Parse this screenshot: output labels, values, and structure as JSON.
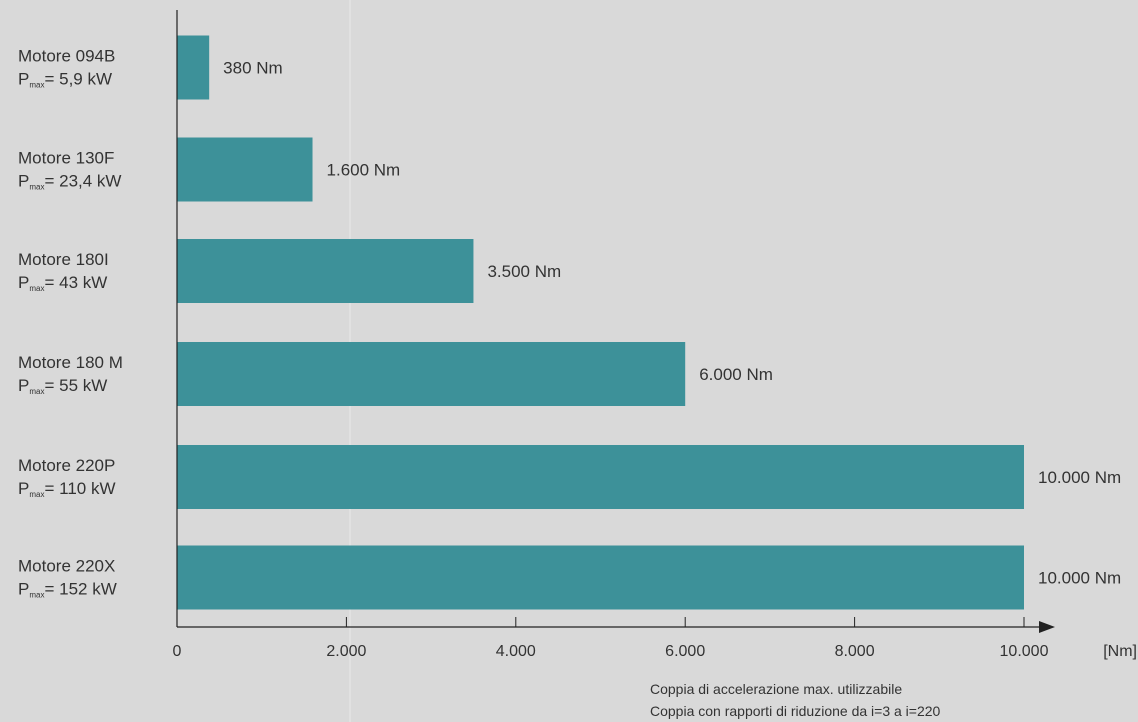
{
  "chart_data": {
    "type": "bar",
    "orientation": "horizontal",
    "categories": [
      {
        "name": "Motore 094B",
        "power_symbol": "P",
        "power_sub": "max",
        "power_value": "= 5,9 kW"
      },
      {
        "name": "Motore 130F",
        "power_symbol": "P",
        "power_sub": "max",
        "power_value": "= 23,4 kW"
      },
      {
        "name": "Motore 180I",
        "power_symbol": "P",
        "power_sub": "max",
        "power_value": "= 43 kW"
      },
      {
        "name": "Motore 180 M",
        "power_symbol": "P",
        "power_sub": "max",
        "power_value": "= 55 kW"
      },
      {
        "name": "Motore 220P",
        "power_symbol": "P",
        "power_sub": "max",
        "power_value": "= 110 kW"
      },
      {
        "name": "Motore 220X",
        "power_symbol": "P",
        "power_sub": "max",
        "power_value": "= 152 kW"
      }
    ],
    "values": [
      380,
      1600,
      3500,
      6000,
      10000,
      10000
    ],
    "data_labels": [
      "380 Nm",
      "1.600 Nm",
      "3.500 Nm",
      "6.000 Nm",
      "10.000 Nm",
      "10.000 Nm"
    ],
    "xlim": [
      0,
      10000
    ],
    "x_ticks": [
      0,
      2000,
      4000,
      6000,
      8000,
      10000
    ],
    "x_tick_labels": [
      "0",
      "2.000",
      "4.000",
      "6.000",
      "8.000",
      "10.000"
    ],
    "x_unit": "[Nm]",
    "grid": false,
    "footnote_lines": [
      "Coppia di accelerazione max. utilizzabile",
      "Coppia con rapporti di riduzione da i=3 a i=220"
    ],
    "colors": {
      "bar": "#3d9199",
      "axis": "#222222",
      "background": "#d9d9d9",
      "text": "#333333"
    }
  }
}
